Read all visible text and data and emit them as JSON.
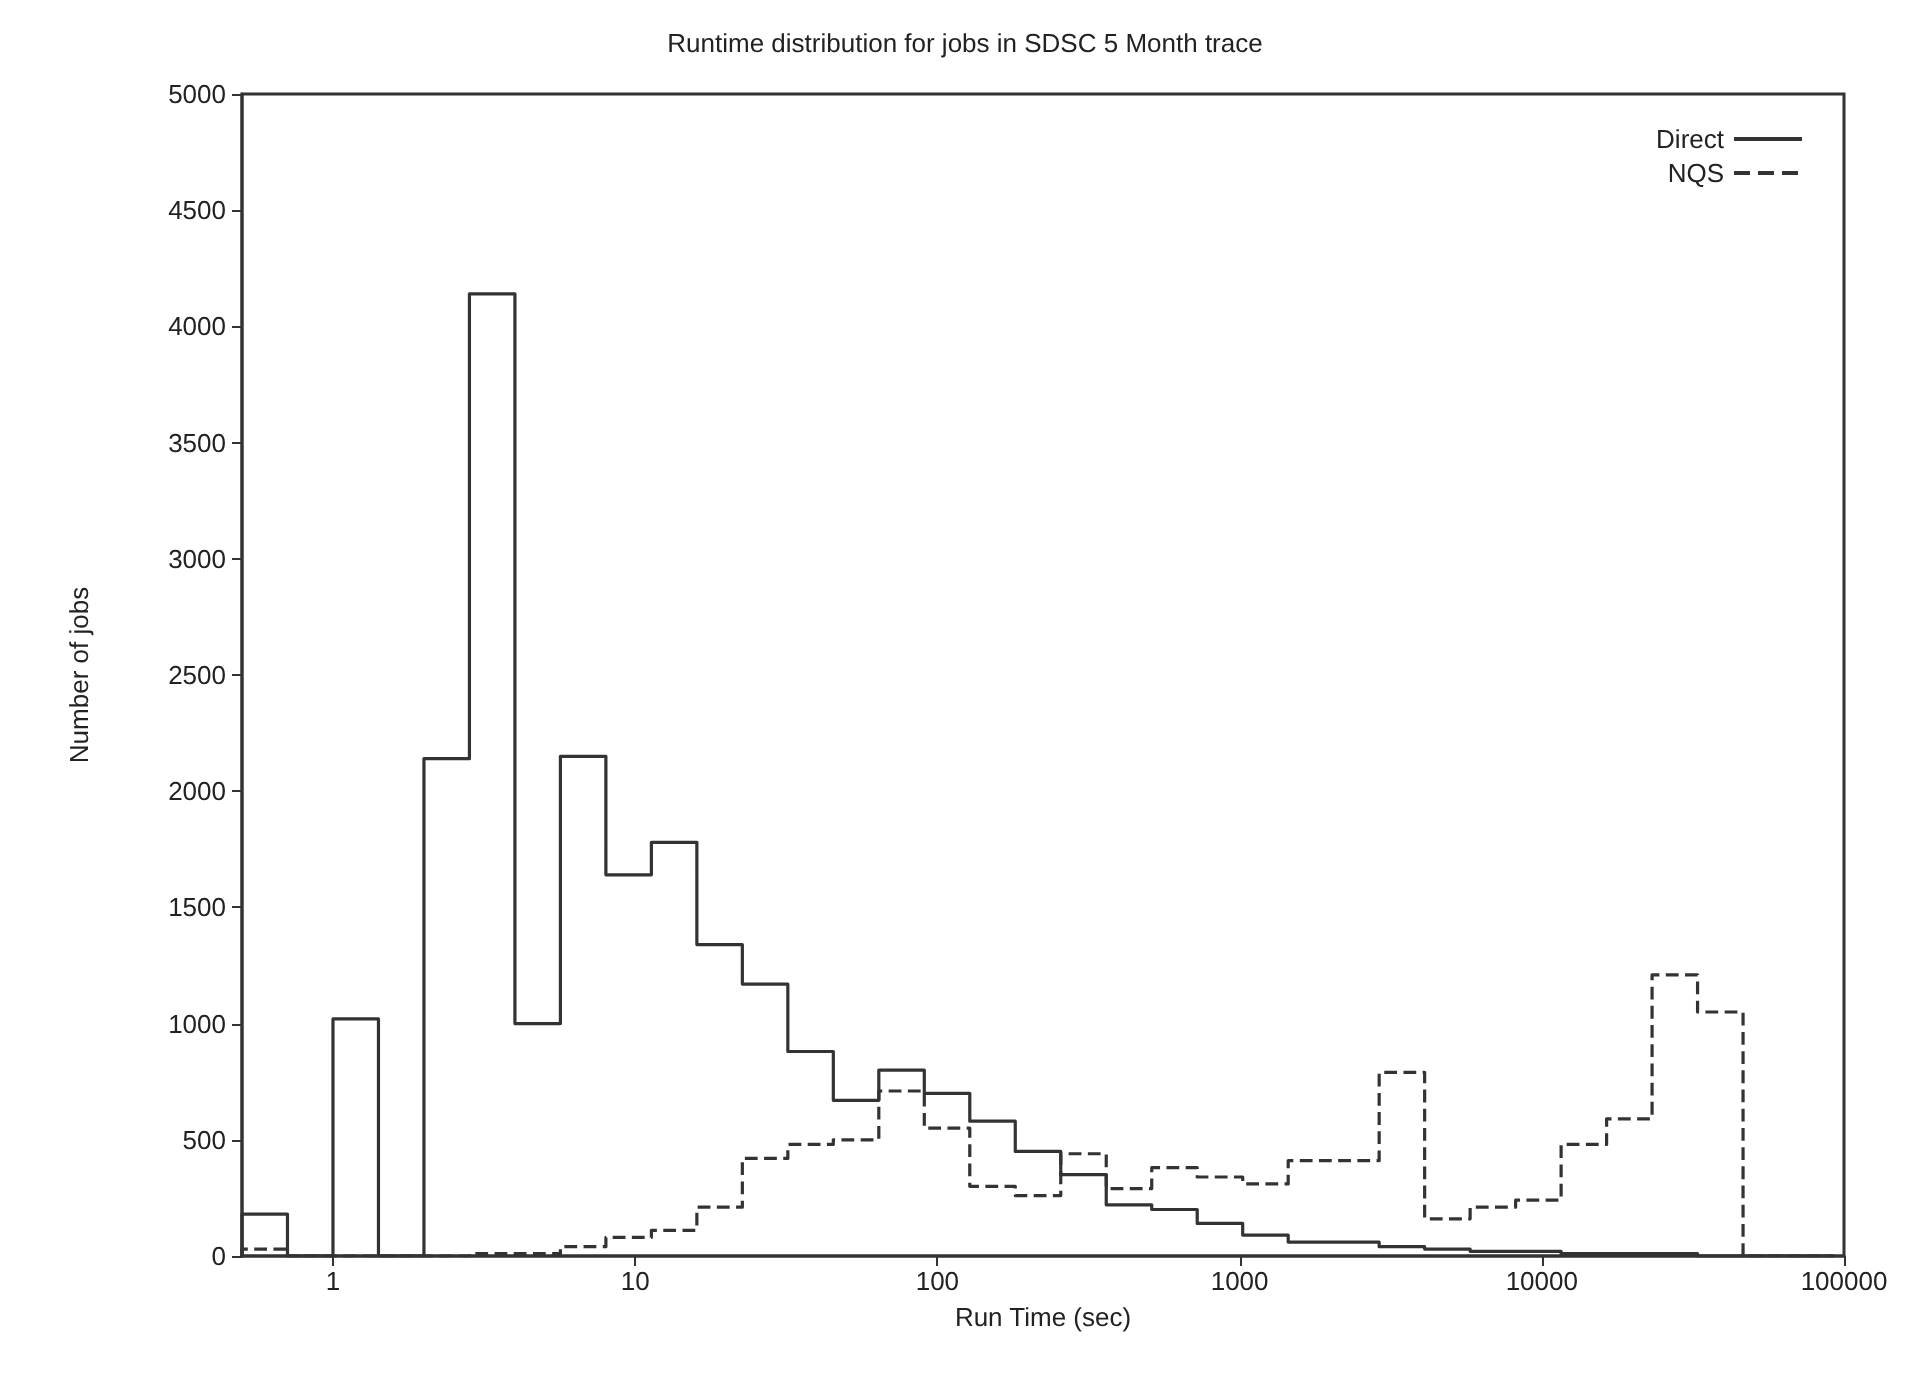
{
  "chart_data": {
    "type": "histogram",
    "title": "Runtime distribution for jobs in SDSC 5 Month trace",
    "xlabel": "Run Time (sec)",
    "ylabel": "Number of jobs",
    "bins": [
      0.5,
      0.7071,
      1,
      1.4142,
      2,
      2.8284,
      4,
      5.6569,
      8,
      11.314,
      16,
      22.627,
      32,
      45.255,
      64,
      90.51,
      128,
      181.02,
      256,
      362.04,
      512,
      724.08,
      1024,
      1448.2,
      2048,
      2896.3,
      4096,
      5792.6,
      8192,
      11585,
      16384,
      23170,
      32768,
      46341,
      65536,
      92682
    ],
    "series": [
      {
        "name": "Direct",
        "color": "#333333",
        "line_style": "solid",
        "values": [
          180,
          0,
          1020,
          0,
          2140,
          4140,
          1000,
          2150,
          1640,
          1780,
          1340,
          1170,
          880,
          670,
          800,
          700,
          580,
          450,
          350,
          220,
          200,
          140,
          90,
          60,
          60,
          40,
          30,
          20,
          20,
          10,
          10,
          10,
          0,
          0,
          0
        ]
      },
      {
        "name": "NQS",
        "color": "#333333",
        "line_style": "dashed",
        "values": [
          30,
          0,
          0,
          0,
          0,
          10,
          10,
          40,
          80,
          110,
          210,
          420,
          480,
          500,
          710,
          550,
          300,
          260,
          440,
          290,
          380,
          340,
          310,
          410,
          410,
          790,
          160,
          210,
          240,
          480,
          590,
          1210,
          1050,
          0,
          0
        ]
      }
    ],
    "xlim": [
      0.5,
      100000
    ],
    "xticks": [
      1,
      10,
      100,
      1000,
      10000,
      100000
    ],
    "ylim": [
      0,
      5000
    ],
    "yticks": [
      0,
      500,
      1000,
      1500,
      2000,
      2500,
      3000,
      3500,
      4000,
      4500,
      5000
    ],
    "log": "x",
    "legend": "top right"
  }
}
